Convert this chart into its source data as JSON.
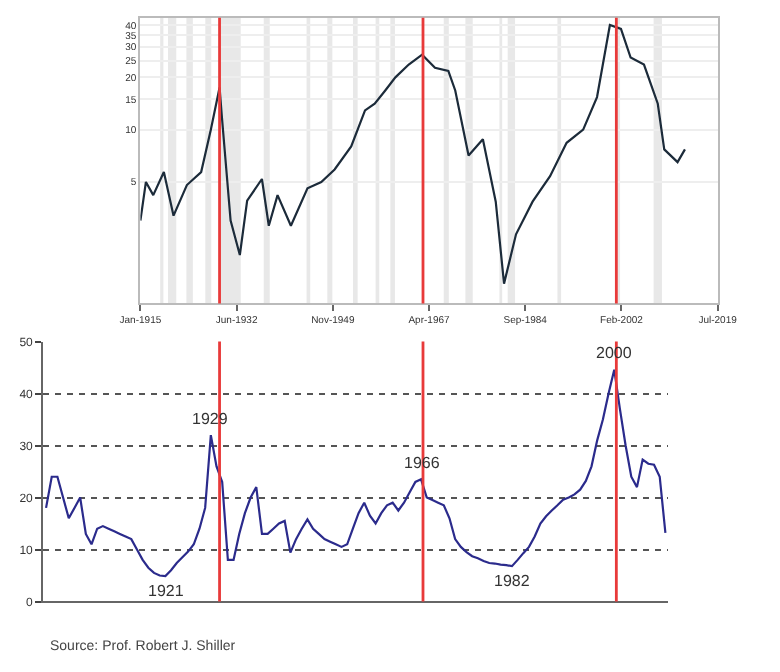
{
  "chart_data": [
    {
      "type": "line",
      "log": "y",
      "grid": "y",
      "marker": "none",
      "line_style": "solid",
      "x": [
        "1915-01",
        "1916-01",
        "1917-05",
        "1919-04",
        "1921-01",
        "1923-06",
        "1926-01",
        "1927-10",
        "1929-05",
        "1929-10",
        "1931-05",
        "1933-01",
        "1934-05",
        "1937-01",
        "1938-04",
        "1939-11",
        "1942-04",
        "1945-04",
        "1947-10",
        "1950-03",
        "1953-03",
        "1955-09",
        "1957-06",
        "1959-05",
        "1961-03",
        "1963-08",
        "1966-01",
        "1968-05",
        "1970-10",
        "1972-01",
        "1974-06",
        "1977-01",
        "1979-05",
        "1980-11",
        "1983-01",
        "1986-01",
        "1989-03",
        "1992-03",
        "1995-03",
        "1997-09",
        "2000-01",
        "2002-01",
        "2003-10",
        "2006-03",
        "2008-09",
        "2009-11",
        "2012-04",
        "2013-08"
      ],
      "series": [
        {
          "color": "#1c2b3a",
          "values": [
            3.0,
            5.0,
            4.2,
            5.7,
            3.2,
            4.8,
            5.7,
            10,
            17.5,
            11.9,
            3.0,
            1.9,
            3.9,
            5.2,
            2.8,
            4.2,
            2.8,
            4.6,
            5.0,
            5.9,
            8.0,
            12.9,
            14.1,
            16.8,
            20,
            23.7,
            27,
            22.7,
            21.8,
            16.8,
            7.1,
            8.8,
            3.85,
            1.3,
            2.5,
            3.85,
            5.4,
            8.4,
            10,
            15.4,
            40,
            38,
            26,
            23.7,
            14.1,
            7.7,
            6.5,
            7.7
          ]
        }
      ],
      "xlim": [
        "1915-01",
        "2019-07"
      ],
      "xticks": [
        {
          "value": "1915-01",
          "label": "Jan-1915"
        },
        {
          "value": "1932-06",
          "label": "Jun-1932"
        },
        {
          "value": "1949-11",
          "label": "Nov-1949"
        },
        {
          "value": "1967-04",
          "label": "Apr-1967"
        },
        {
          "value": "1984-09",
          "label": "Sep-1984"
        },
        {
          "value": "2002-02",
          "label": "Feb-2002"
        },
        {
          "value": "2019-07",
          "label": "Jul-2019"
        }
      ],
      "ylim": [
        1,
        44
      ],
      "yticks": [
        5,
        10,
        15,
        20,
        25,
        30,
        35,
        40
      ],
      "bands": [
        {
          "axis": "x",
          "from": "1918-08",
          "to": "1919-03",
          "color": "#e8e8e8"
        },
        {
          "axis": "x",
          "from": "1920-01",
          "to": "1921-07",
          "color": "#e8e8e8"
        },
        {
          "axis": "x",
          "from": "1923-05",
          "to": "1924-07",
          "color": "#e8e8e8"
        },
        {
          "axis": "x",
          "from": "1926-10",
          "to": "1927-11",
          "color": "#e8e8e8"
        },
        {
          "axis": "x",
          "from": "1929-08",
          "to": "1933-03",
          "color": "#e8e8e8"
        },
        {
          "axis": "x",
          "from": "1937-05",
          "to": "1938-06",
          "color": "#e8e8e8"
        },
        {
          "axis": "x",
          "from": "1945-02",
          "to": "1945-10",
          "color": "#e8e8e8"
        },
        {
          "axis": "x",
          "from": "1948-11",
          "to": "1949-10",
          "color": "#e8e8e8"
        },
        {
          "axis": "x",
          "from": "1953-07",
          "to": "1954-05",
          "color": "#e8e8e8"
        },
        {
          "axis": "x",
          "from": "1957-08",
          "to": "1958-04",
          "color": "#e8e8e8"
        },
        {
          "axis": "x",
          "from": "1960-04",
          "to": "1961-02",
          "color": "#e8e8e8"
        },
        {
          "axis": "x",
          "from": "1969-12",
          "to": "1970-11",
          "color": "#e8e8e8"
        },
        {
          "axis": "x",
          "from": "1973-11",
          "to": "1975-03",
          "color": "#e8e8e8"
        },
        {
          "axis": "x",
          "from": "1980-01",
          "to": "1980-07",
          "color": "#e8e8e8"
        },
        {
          "axis": "x",
          "from": "1981-07",
          "to": "1982-11",
          "color": "#e8e8e8"
        },
        {
          "axis": "x",
          "from": "1990-07",
          "to": "1991-03",
          "color": "#e8e8e8"
        },
        {
          "axis": "x",
          "from": "2001-03",
          "to": "2001-11",
          "color": "#e8e8e8"
        },
        {
          "axis": "x",
          "from": "2007-12",
          "to": "2009-06",
          "color": "#e8e8e8"
        }
      ],
      "ref_lines": [
        {
          "axis": "x",
          "value": "1929-05",
          "color": "#e83a3a"
        },
        {
          "axis": "x",
          "value": "1966-03",
          "color": "#e83a3a"
        },
        {
          "axis": "x",
          "value": "2001-03",
          "color": "#e83a3a"
        }
      ]
    },
    {
      "type": "line",
      "grid": "y",
      "marker": "none",
      "line_style": "solid",
      "categories": [
        null,
        null,
        null,
        null,
        null,
        null,
        null,
        null,
        null,
        null,
        null,
        null,
        null,
        null,
        null,
        null,
        null,
        null,
        null,
        null,
        null,
        null,
        null,
        null,
        null,
        null,
        null,
        null,
        null,
        null,
        null,
        null,
        null,
        null,
        null,
        null,
        null,
        null,
        null,
        null,
        null,
        null,
        null,
        null,
        null,
        null,
        null,
        null,
        null,
        null,
        null,
        null,
        null,
        null,
        null,
        null,
        null,
        null,
        null,
        null,
        null,
        null,
        null,
        null,
        null,
        null,
        null,
        null,
        null,
        null,
        null,
        null,
        null,
        null,
        null,
        null,
        null,
        null,
        null,
        null,
        null,
        null,
        null,
        null,
        null,
        null,
        null,
        null,
        null,
        null,
        null,
        null,
        null,
        null,
        null,
        null,
        null,
        null,
        null,
        null,
        null,
        null,
        null,
        null,
        null,
        null,
        null,
        null,
        null,
        null
      ],
      "series": [
        {
          "color": "#2b2b8c",
          "values": [
            18,
            24,
            24,
            20,
            16,
            18,
            20,
            13,
            11,
            14,
            14.5,
            14,
            13.5,
            13,
            12.5,
            12,
            10,
            8,
            6.5,
            5.5,
            5,
            4.9,
            6,
            7.4,
            8.5,
            9.6,
            11,
            14,
            18,
            32,
            26,
            23,
            8,
            8,
            13,
            17,
            20,
            22,
            13,
            13,
            14,
            15,
            15.5,
            9.4,
            12,
            14,
            15.8,
            14,
            13,
            12,
            11.5,
            11,
            10.5,
            11,
            14,
            17,
            19,
            16.5,
            15,
            17,
            18.5,
            19,
            17.5,
            19,
            21,
            23,
            23.5,
            20,
            19.5,
            19,
            18.5,
            16,
            12,
            10.5,
            9.5,
            8.7,
            8.3,
            7.8,
            7.4,
            7.3,
            7.1,
            7,
            6.8,
            8,
            9.3,
            10.5,
            12.5,
            15,
            16.4,
            17.5,
            18.5,
            19.6,
            20,
            20.6,
            21.5,
            23.2,
            26,
            31,
            35,
            40,
            44.6,
            37,
            30,
            24,
            22,
            27.3,
            26.5,
            26.3,
            24,
            13.2
          ]
        }
      ],
      "ylim": [
        0,
        50
      ],
      "yticks": [
        0,
        10,
        20,
        30,
        40,
        50
      ],
      "annotations": [
        {
          "text": "1921",
          "y": 4.9
        },
        {
          "text": "1929",
          "y": 32
        },
        {
          "text": "1966",
          "y": 23.5
        },
        {
          "text": "1982",
          "y": 6.8
        },
        {
          "text": "2000",
          "y": 44.6
        },
        "Source: Prof. Robert J. Shiller"
      ]
    }
  ]
}
